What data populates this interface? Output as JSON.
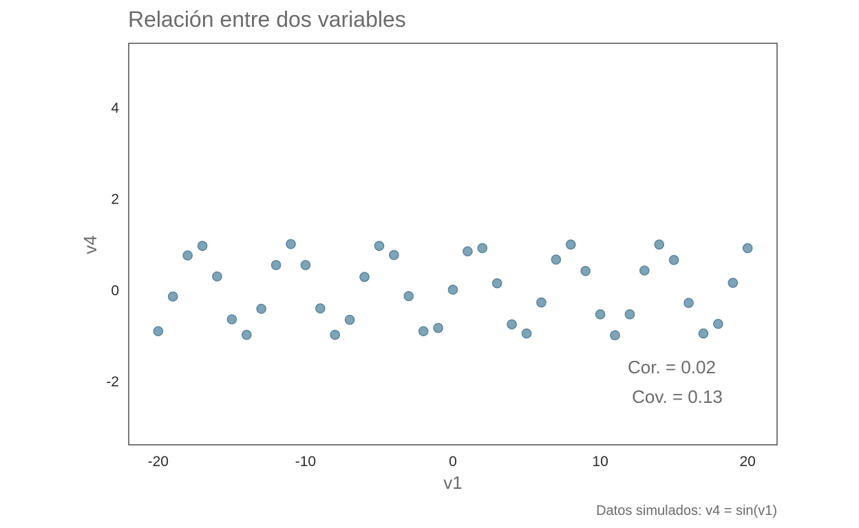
{
  "chart_data": {
    "type": "scatter",
    "title": "Relación entre dos variables",
    "xlabel": "v1",
    "ylabel": "v4",
    "caption": "Datos simulados:  v4 = sin(v1)",
    "annotations": [
      "Cor. =  0.02",
      "Cov. =  0.13"
    ],
    "xlim": [
      -22,
      22
    ],
    "ylim": [
      -3.4,
      5.4
    ],
    "xticks": [
      -20,
      -10,
      0,
      10,
      20
    ],
    "xtick_labels": [
      "-20",
      "-10",
      "0",
      "10",
      "20"
    ],
    "yticks": [
      -2,
      0,
      2,
      4
    ],
    "ytick_labels": [
      "-2",
      "0",
      "2",
      "4"
    ],
    "grid": false,
    "colors": {
      "point_fill": "#7ea4b8",
      "point_stroke": "#5e879d",
      "panel_border": "#333333"
    },
    "points": [
      {
        "x": -20,
        "y": -0.91
      },
      {
        "x": -19,
        "y": -0.15
      },
      {
        "x": -18,
        "y": 0.75
      },
      {
        "x": -17,
        "y": 0.96
      },
      {
        "x": -16,
        "y": 0.29
      },
      {
        "x": -15,
        "y": -0.65
      },
      {
        "x": -14,
        "y": -0.99
      },
      {
        "x": -13,
        "y": -0.42
      },
      {
        "x": -12,
        "y": 0.54
      },
      {
        "x": -11,
        "y": 1.0
      },
      {
        "x": -10,
        "y": 0.54
      },
      {
        "x": -9,
        "y": -0.41
      },
      {
        "x": -8,
        "y": -0.99
      },
      {
        "x": -7,
        "y": -0.66
      },
      {
        "x": -6,
        "y": 0.28
      },
      {
        "x": -5,
        "y": 0.96
      },
      {
        "x": -4,
        "y": 0.76
      },
      {
        "x": -3,
        "y": -0.14
      },
      {
        "x": -2,
        "y": -0.91
      },
      {
        "x": -1,
        "y": -0.84
      },
      {
        "x": 0,
        "y": 0.0
      },
      {
        "x": 1,
        "y": 0.84
      },
      {
        "x": 2,
        "y": 0.91
      },
      {
        "x": 3,
        "y": 0.14
      },
      {
        "x": 4,
        "y": -0.76
      },
      {
        "x": 5,
        "y": -0.96
      },
      {
        "x": 6,
        "y": -0.28
      },
      {
        "x": 7,
        "y": 0.66
      },
      {
        "x": 8,
        "y": 0.99
      },
      {
        "x": 9,
        "y": 0.41
      },
      {
        "x": 10,
        "y": -0.54
      },
      {
        "x": 11,
        "y": -1.0
      },
      {
        "x": 12,
        "y": -0.54
      },
      {
        "x": 13,
        "y": 0.42
      },
      {
        "x": 14,
        "y": 0.99
      },
      {
        "x": 15,
        "y": 0.65
      },
      {
        "x": 16,
        "y": -0.29
      },
      {
        "x": 17,
        "y": -0.96
      },
      {
        "x": 18,
        "y": -0.75
      },
      {
        "x": 19,
        "y": 0.15
      },
      {
        "x": 20,
        "y": 0.91
      }
    ]
  }
}
